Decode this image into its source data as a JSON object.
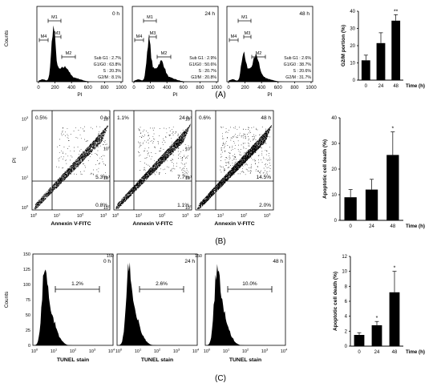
{
  "panel_labels": [
    "(A)",
    "(B)",
    "(C)"
  ],
  "row_a": {
    "flow_plots": [
      {
        "time": "0 h",
        "stats": [
          "Sub G1 : 2.7%",
          "G1/G0 : 63.8%",
          "S : 20.3%",
          "G2/M : 8.1%"
        ]
      },
      {
        "time": "24 h",
        "stats": [
          "Sub G1 : 2.9%",
          "G1/G0 : 50.6%",
          "S : 20.7%",
          "G2/M : 20.8%"
        ]
      },
      {
        "time": "48 h",
        "stats": [
          "Sub G1 : 2.6%",
          "G1/G0 : 38.7%",
          "S : 20.6%",
          "G2/M : 31.7%"
        ]
      }
    ],
    "gates": [
      "M1",
      "M4",
      "M3",
      "M2"
    ],
    "ylabel": "Counts",
    "xlabel": "PI",
    "xticks": [
      "0",
      "200",
      "400",
      "600",
      "800",
      "1000"
    ]
  },
  "row_b": {
    "flow_plots": [
      {
        "time": "0 h",
        "quadrants": {
          "ul": "0.5%",
          "ur": "5.3%",
          "lr": "0.8%"
        }
      },
      {
        "time": "24 h",
        "quadrants": {
          "ul": "1.1%",
          "ur": "7.7%",
          "lr": "1.1%"
        }
      },
      {
        "time": "48 h",
        "quadrants": {
          "ul": "0.6%",
          "ur": "14.5%",
          "lr": "2.0%"
        }
      }
    ],
    "ylabel": "PI",
    "xlabel": "Annexin V-FITC"
  },
  "row_c": {
    "flow_plots": [
      {
        "time": "0 h",
        "gate": "1.2%"
      },
      {
        "time": "24 h",
        "gate": "2.6%"
      },
      {
        "time": "48 h",
        "gate": "10.0%"
      }
    ],
    "ylabel": "Counts",
    "xlabel": "TUNEL stain",
    "yticks": [
      "0",
      "25",
      "50",
      "75",
      "100",
      "125",
      "150"
    ]
  },
  "chart_data": [
    {
      "type": "bar",
      "ylabel": "G2/M portion (%)",
      "xlabel": "Time (h)",
      "categories": [
        "0",
        "24",
        "48"
      ],
      "values": [
        11.5,
        21.5,
        34.5
      ],
      "errors": [
        3,
        6,
        3.5
      ],
      "significance": [
        "",
        "",
        "**"
      ],
      "ylim": [
        0,
        40
      ],
      "yticks": [
        "0",
        "10",
        "20",
        "30",
        "40"
      ]
    },
    {
      "type": "bar",
      "ylabel": "Apoptotic cell death (%)",
      "xlabel": "Time (h)",
      "categories": [
        "0",
        "24",
        "48"
      ],
      "values": [
        9,
        12,
        25.5
      ],
      "errors": [
        3,
        4,
        9
      ],
      "significance": [
        "",
        "",
        "*"
      ],
      "ylim": [
        0,
        40
      ],
      "yticks": [
        "0",
        "10",
        "20",
        "30",
        "40"
      ]
    },
    {
      "type": "bar",
      "ylabel": "Apoptotic cell death (%)",
      "xlabel": "Time (h)",
      "categories": [
        "0",
        "24",
        "48"
      ],
      "values": [
        1.5,
        2.8,
        7.2
      ],
      "errors": [
        0.3,
        0.5,
        2.8
      ],
      "significance": [
        "",
        "*",
        "*"
      ],
      "ylim": [
        0,
        12
      ],
      "yticks": [
        "0",
        "2",
        "4",
        "6",
        "8",
        "10",
        "12"
      ]
    }
  ]
}
